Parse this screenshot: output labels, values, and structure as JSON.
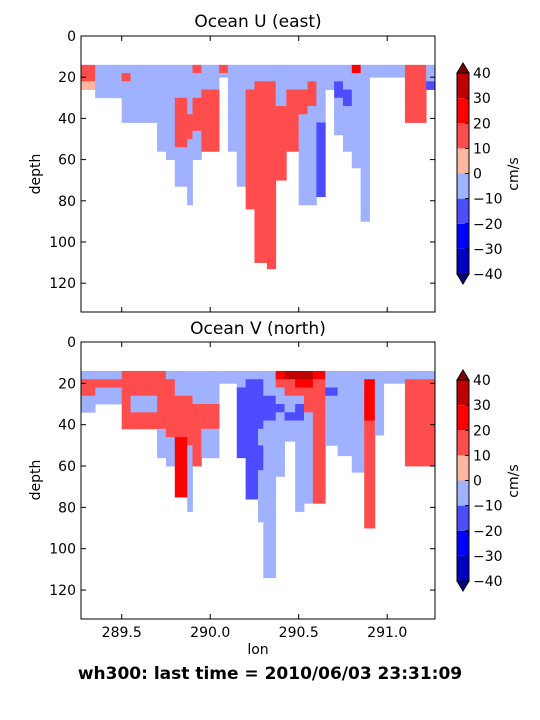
{
  "footer_title": "wh300: last time = 2010/06/03 23:31:09",
  "colorbar": {
    "ticks": [
      -40,
      -30,
      -20,
      -10,
      0,
      10,
      20,
      30,
      40
    ],
    "label": "cm/s",
    "levels": [
      -40,
      -30,
      -20,
      -10,
      0,
      10,
      20,
      30,
      40
    ],
    "colors": [
      "#0000bf",
      "#0000ff",
      "#4d4dff",
      "#9fb1ff",
      "#ffb7a1",
      "#ff4d4d",
      "#ff0000",
      "#bf0000"
    ]
  },
  "chart_data": [
    {
      "type": "heatmap",
      "title": "Ocean U (east)",
      "xlabel": "",
      "ylabel": "depth",
      "zlabel": "cm/s",
      "xlim": [
        289.27,
        291.27
      ],
      "ylim": [
        134,
        0
      ],
      "y_inverted": true,
      "x_ticks": [
        289.5,
        290.0,
        290.5,
        291.0
      ],
      "x_tick_labels": [
        "",
        "",
        "",
        ""
      ],
      "y_ticks": [
        0,
        20,
        40,
        60,
        80,
        100,
        120
      ],
      "grid": false,
      "columns": [
        {
          "x0": 289.27,
          "x1": 289.35,
          "bottom": 26,
          "v": [
            10,
            10,
            0,
            -10
          ]
        },
        {
          "x0": 289.35,
          "x1": 289.5,
          "bottom": 30,
          "v": [
            -10,
            -10,
            -10,
            -10
          ]
        },
        {
          "x0": 289.5,
          "x1": 289.55,
          "bottom": 42,
          "v": [
            -10,
            10,
            -10,
            -10,
            -10,
            -10
          ]
        },
        {
          "x0": 289.55,
          "x1": 289.7,
          "bottom": 42,
          "v": [
            -10,
            -10,
            -10,
            -10,
            -10,
            -10
          ]
        },
        {
          "x0": 289.7,
          "x1": 289.75,
          "bottom": 56,
          "v": [
            -10,
            -10,
            -10,
            -10,
            -10,
            -10,
            -10,
            -10
          ]
        },
        {
          "x0": 289.75,
          "x1": 289.8,
          "bottom": 60,
          "v": [
            -10,
            -10,
            -10,
            -10,
            -10,
            -10,
            -10,
            -10,
            -10
          ]
        },
        {
          "x0": 289.8,
          "x1": 289.87,
          "bottom": 73,
          "v": [
            -10,
            -10,
            -10,
            -10,
            10,
            10,
            10,
            10,
            10,
            10,
            -10
          ]
        },
        {
          "x0": 289.87,
          "x1": 289.9,
          "bottom": 82,
          "v": [
            -10,
            -10,
            -10,
            -10,
            -10,
            -10,
            10,
            10,
            10,
            -10,
            -10,
            -10
          ]
        },
        {
          "x0": 289.9,
          "x1": 289.95,
          "bottom": 60,
          "v": [
            10,
            -10,
            -10,
            -10,
            10,
            10,
            10,
            10,
            -10
          ]
        },
        {
          "x0": 289.95,
          "x1": 290.05,
          "bottom": 56,
          "v": [
            -10,
            -10,
            -10,
            10,
            10,
            10,
            10,
            10
          ]
        },
        {
          "x0": 290.05,
          "x1": 290.1,
          "bottom": 20,
          "v": [
            10,
            -10
          ]
        },
        {
          "x0": 290.1,
          "x1": 290.15,
          "bottom": 56,
          "v": [
            -10,
            -10,
            -10,
            -10,
            -10,
            -10,
            -10,
            -10
          ]
        },
        {
          "x0": 290.15,
          "x1": 290.2,
          "bottom": 73,
          "v": [
            -10,
            -10,
            -10,
            -10,
            -10,
            -10,
            -10,
            -10,
            -10,
            -10,
            -10
          ]
        },
        {
          "x0": 290.2,
          "x1": 290.25,
          "bottom": 84,
          "v": [
            -10,
            -10,
            -10,
            10,
            10,
            10,
            10,
            10,
            10,
            10,
            10,
            10
          ]
        },
        {
          "x0": 290.25,
          "x1": 290.32,
          "bottom": 110,
          "v": [
            -10,
            -10,
            10,
            10,
            10,
            10,
            10,
            10,
            10,
            10,
            10,
            10,
            10,
            10,
            10,
            10,
            10,
            10
          ]
        },
        {
          "x0": 290.32,
          "x1": 290.37,
          "bottom": 113,
          "v": [
            -10,
            -10,
            10,
            10,
            10,
            10,
            10,
            10,
            10,
            10,
            10,
            10,
            10,
            10,
            10,
            10,
            10,
            10,
            10
          ]
        },
        {
          "x0": 290.37,
          "x1": 290.43,
          "bottom": 70,
          "v": [
            -10,
            -10,
            -10,
            -10,
            -10,
            10,
            10,
            10,
            10,
            10
          ]
        },
        {
          "x0": 290.43,
          "x1": 290.5,
          "bottom": 56,
          "v": [
            -10,
            -10,
            -10,
            10,
            10,
            10,
            10,
            10
          ]
        },
        {
          "x0": 290.5,
          "x1": 290.55,
          "bottom": 82,
          "v": [
            -10,
            -10,
            -10,
            10,
            10,
            10,
            -10,
            -10,
            -10,
            -10,
            -10,
            -10
          ]
        },
        {
          "x0": 290.55,
          "x1": 290.6,
          "bottom": 82,
          "v": [
            -10,
            -10,
            10,
            10,
            10,
            -10,
            -10,
            -10,
            -10,
            -10,
            -10,
            -10
          ]
        },
        {
          "x0": 290.6,
          "x1": 290.65,
          "bottom": 78,
          "v": [
            -10,
            -10,
            -10,
            -10,
            -10,
            -10,
            -10,
            -20,
            -20,
            -20,
            -20
          ]
        },
        {
          "x0": 290.65,
          "x1": 290.7,
          "bottom": 26,
          "v": [
            -10,
            -10,
            -10
          ]
        },
        {
          "x0": 290.7,
          "x1": 290.75,
          "bottom": 48,
          "v": [
            -10,
            -10,
            -20,
            -20,
            -10,
            -10,
            -10
          ]
        },
        {
          "x0": 290.75,
          "x1": 290.8,
          "bottom": 56,
          "v": [
            -10,
            -10,
            -10,
            -20,
            -20,
            -10,
            -10,
            -10
          ]
        },
        {
          "x0": 290.8,
          "x1": 290.85,
          "bottom": 64,
          "v": [
            20,
            -10,
            -10,
            -10,
            -10,
            -10,
            -10,
            -10,
            -10
          ]
        },
        {
          "x0": 290.85,
          "x1": 290.9,
          "bottom": 90,
          "v": [
            -10,
            -10,
            -10,
            -10,
            -10,
            -10,
            -10,
            -10,
            -10,
            -10,
            -10,
            -10,
            -10,
            -10
          ]
        },
        {
          "x0": 290.9,
          "x1": 290.95,
          "bottom": 20,
          "v": [
            -10,
            -10
          ]
        },
        {
          "x0": 290.95,
          "x1": 291.1,
          "bottom": 20,
          "v": [
            -10,
            -10
          ]
        },
        {
          "x0": 291.1,
          "x1": 291.22,
          "bottom": 42,
          "v": [
            10,
            10,
            10,
            10,
            10,
            10
          ]
        },
        {
          "x0": 291.22,
          "x1": 291.27,
          "bottom": 26,
          "v": [
            -10,
            -10,
            -20
          ]
        }
      ]
    },
    {
      "type": "heatmap",
      "title": "Ocean V (north)",
      "xlabel": "lon",
      "ylabel": "depth",
      "zlabel": "cm/s",
      "xlim": [
        289.27,
        291.27
      ],
      "ylim": [
        134,
        0
      ],
      "y_inverted": true,
      "x_ticks": [
        289.5,
        290.0,
        290.5,
        291.0
      ],
      "x_tick_labels": [
        "289.5",
        "290.0",
        "290.5",
        "291.0"
      ],
      "y_ticks": [
        0,
        20,
        40,
        60,
        80,
        100,
        120
      ],
      "grid": false,
      "columns": [
        {
          "x0": 289.27,
          "x1": 289.35,
          "bottom": 34,
          "v": [
            -10,
            10,
            10,
            -10,
            -10
          ]
        },
        {
          "x0": 289.35,
          "x1": 289.5,
          "bottom": 30,
          "v": [
            -10,
            10,
            -10,
            -10
          ]
        },
        {
          "x0": 289.5,
          "x1": 289.55,
          "bottom": 42,
          "v": [
            10,
            10,
            10,
            10,
            10,
            10
          ]
        },
        {
          "x0": 289.55,
          "x1": 289.7,
          "bottom": 42,
          "v": [
            10,
            10,
            10,
            -10,
            -10,
            10
          ]
        },
        {
          "x0": 289.7,
          "x1": 289.75,
          "bottom": 56,
          "v": [
            10,
            10,
            10,
            10,
            10,
            10,
            10,
            -10
          ]
        },
        {
          "x0": 289.75,
          "x1": 289.8,
          "bottom": 60,
          "v": [
            -10,
            10,
            10,
            10,
            10,
            10,
            10,
            10,
            -10
          ]
        },
        {
          "x0": 289.8,
          "x1": 289.87,
          "bottom": 75,
          "v": [
            -10,
            -10,
            -10,
            10,
            10,
            10,
            10,
            10,
            20,
            20,
            20
          ]
        },
        {
          "x0": 289.87,
          "x1": 289.9,
          "bottom": 82,
          "v": [
            -10,
            -10,
            -10,
            10,
            10,
            10,
            10,
            10,
            10,
            -10,
            -10,
            -10
          ]
        },
        {
          "x0": 289.9,
          "x1": 289.95,
          "bottom": 60,
          "v": [
            -10,
            -10,
            -10,
            -10,
            10,
            10,
            10,
            10,
            10
          ]
        },
        {
          "x0": 289.95,
          "x1": 290.05,
          "bottom": 56,
          "v": [
            -10,
            -10,
            -10,
            -10,
            10,
            10,
            10,
            -10
          ]
        },
        {
          "x0": 290.05,
          "x1": 290.15,
          "bottom": 20,
          "v": [
            -10,
            -10
          ]
        },
        {
          "x0": 290.15,
          "x1": 290.2,
          "bottom": 56,
          "v": [
            -10,
            -10,
            -20,
            -20,
            -20,
            -20,
            -20,
            -20
          ]
        },
        {
          "x0": 290.2,
          "x1": 290.27,
          "bottom": 76,
          "v": [
            -10,
            -20,
            -20,
            -20,
            -20,
            -20,
            -20,
            -20,
            -20,
            -20,
            -20
          ]
        },
        {
          "x0": 290.27,
          "x1": 290.3,
          "bottom": 87,
          "v": [
            -10,
            -20,
            -20,
            -20,
            -20,
            -20,
            -20,
            -10,
            -10,
            -20,
            -20,
            -20,
            -10
          ]
        },
        {
          "x0": 290.3,
          "x1": 290.37,
          "bottom": 114,
          "v": [
            -10,
            -10,
            -10,
            -20,
            -20,
            -20,
            -10,
            -10,
            -10,
            -10,
            -10,
            -10,
            -10,
            -10,
            -10,
            -10,
            -10,
            -10,
            -10
          ]
        },
        {
          "x0": 290.37,
          "x1": 290.42,
          "bottom": 65,
          "v": [
            20,
            10,
            -10,
            -10,
            -20,
            -10,
            -10,
            -10,
            -10,
            -10
          ]
        },
        {
          "x0": 290.42,
          "x1": 290.48,
          "bottom": 48,
          "v": [
            30,
            10,
            10,
            -10,
            -10,
            -20,
            -10
          ]
        },
        {
          "x0": 290.48,
          "x1": 290.53,
          "bottom": 82,
          "v": [
            30,
            20,
            10,
            -10,
            -20,
            -20,
            -10,
            -10,
            -10,
            -10,
            -10,
            -10
          ]
        },
        {
          "x0": 290.53,
          "x1": 290.58,
          "bottom": 78,
          "v": [
            30,
            20,
            10,
            10,
            10,
            -10,
            -10,
            -10,
            -10,
            -10,
            -10
          ]
        },
        {
          "x0": 290.58,
          "x1": 290.65,
          "bottom": 78,
          "v": [
            20,
            10,
            10,
            10,
            10,
            10,
            10,
            10,
            10,
            10,
            10
          ]
        },
        {
          "x0": 290.65,
          "x1": 290.72,
          "bottom": 50,
          "v": [
            -10,
            -10,
            -20,
            -10,
            -10,
            -10,
            -10,
            -10
          ]
        },
        {
          "x0": 290.72,
          "x1": 290.8,
          "bottom": 55,
          "v": [
            -10,
            -10,
            -10,
            -10,
            -10,
            -10,
            -10,
            -10
          ]
        },
        {
          "x0": 290.8,
          "x1": 290.87,
          "bottom": 63,
          "v": [
            -10,
            -10,
            -10,
            -10,
            -10,
            -10,
            -10,
            -10,
            -10
          ]
        },
        {
          "x0": 290.87,
          "x1": 290.93,
          "bottom": 90,
          "v": [
            -10,
            20,
            20,
            20,
            20,
            20,
            10,
            10,
            10,
            10,
            10,
            10,
            10,
            10
          ]
        },
        {
          "x0": 290.93,
          "x1": 290.98,
          "bottom": 45,
          "v": [
            -10,
            -10,
            -10,
            -10,
            -10,
            -10,
            -10
          ]
        },
        {
          "x0": 290.98,
          "x1": 291.1,
          "bottom": 20,
          "v": [
            -10,
            -10
          ]
        },
        {
          "x0": 291.1,
          "x1": 291.27,
          "bottom": 60,
          "v": [
            -10,
            10,
            10,
            10,
            10,
            10,
            10,
            10,
            10
          ]
        }
      ]
    }
  ]
}
